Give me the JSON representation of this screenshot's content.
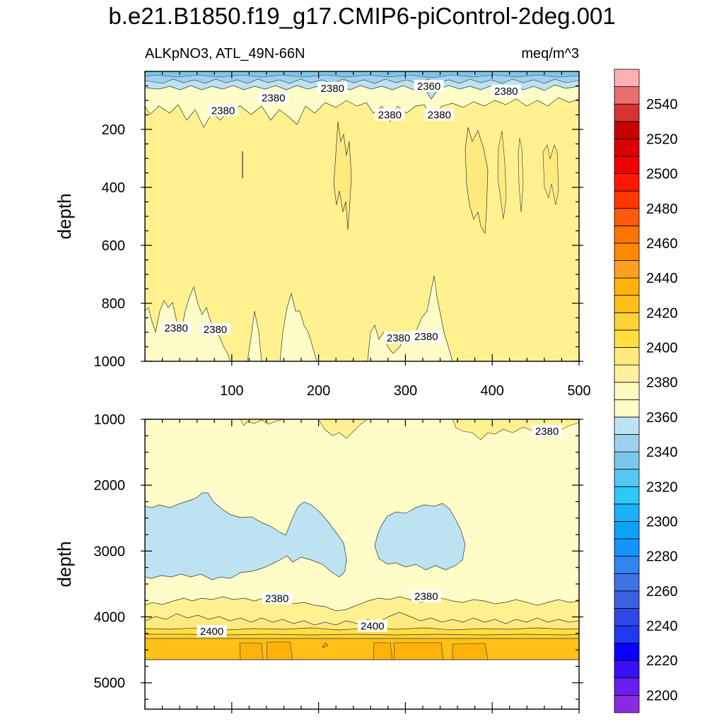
{
  "title": "b.e21.B1850.f19_g17.CMIP6-piControl-2deg.001",
  "chart_data": {
    "type": "contour",
    "variable": "ALKpNO3",
    "region": "ATL_49N-66N",
    "units": "meq/m^3",
    "left_string": "ALKpNO3, ATL_49N-66N",
    "right_string": "meq/m^3",
    "x_range": [
      0,
      500
    ],
    "panels": [
      {
        "name": "upper",
        "ylabel": "depth",
        "y_range": [
          0,
          1000
        ],
        "y_reversed": true,
        "y_ticks": [
          200,
          400,
          600,
          800,
          1000
        ],
        "x_ticks": [
          100,
          200,
          300,
          400,
          500
        ],
        "contour_labels": [
          {
            "text": "2380",
            "x": 148,
            "y": 92
          },
          {
            "text": "2380",
            "x": 216,
            "y": 58
          },
          {
            "text": "2360",
            "x": 327,
            "y": 51
          },
          {
            "text": "2380",
            "x": 416,
            "y": 68
          },
          {
            "text": "2380",
            "x": 90,
            "y": 135
          },
          {
            "text": "2380",
            "x": 282,
            "y": 150
          },
          {
            "text": "2380",
            "x": 339,
            "y": 150
          },
          {
            "text": "2380",
            "x": 36,
            "y": 885
          },
          {
            "text": "2380",
            "x": 81,
            "y": 890
          },
          {
            "text": "2380",
            "x": 292,
            "y": 920
          },
          {
            "text": "2380",
            "x": 324,
            "y": 915
          }
        ]
      },
      {
        "name": "lower",
        "ylabel": "depth",
        "y_range": [
          1000,
          5400
        ],
        "y_reversed": true,
        "y_ticks": [
          1000,
          2000,
          3000,
          4000,
          5000
        ],
        "data_bottom_depth": 4600,
        "contour_labels": [
          {
            "text": "2380",
            "x": 463,
            "y": 1180
          },
          {
            "text": "2380",
            "x": 152,
            "y": 3720
          },
          {
            "text": "2380",
            "x": 324,
            "y": 3690
          },
          {
            "text": "2400",
            "x": 77,
            "y": 4220
          },
          {
            "text": "2400",
            "x": 262,
            "y": 4140
          }
        ]
      }
    ],
    "colorbar": {
      "levels": [
        2200,
        2210,
        2220,
        2230,
        2240,
        2250,
        2260,
        2270,
        2280,
        2290,
        2300,
        2310,
        2320,
        2330,
        2340,
        2350,
        2360,
        2370,
        2380,
        2390,
        2400,
        2410,
        2420,
        2430,
        2440,
        2450,
        2460,
        2470,
        2480,
        2490,
        2500,
        2510,
        2520,
        2530,
        2540,
        2550
      ],
      "tick_labels": [
        "2200",
        "2220",
        "2240",
        "2260",
        "2280",
        "2300",
        "2320",
        "2340",
        "2360",
        "2380",
        "2400",
        "2420",
        "2440",
        "2460",
        "2480",
        "2500",
        "2520",
        "2540"
      ],
      "colors": [
        "#8a2be2",
        "#6a1ff0",
        "#3a0ff5",
        "#0a00fb",
        "#2038f0",
        "#2e48e6",
        "#3d60e0",
        "#3e73e6",
        "#2f86f2",
        "#1694fb",
        "#0aa2fa",
        "#18b2f7",
        "#2cc8f7",
        "#55c8f5",
        "#7dc6ea",
        "#9ed1ee",
        "#bde3f2",
        "#fefdc8",
        "#fffac2",
        "#fff0a0",
        "#ffea80",
        "#ffe040",
        "#ffd238",
        "#ffc018",
        "#ffb20a",
        "#ffa020",
        "#ff8a00",
        "#ff7400",
        "#ff5a0e",
        "#ff3800",
        "#ff1800",
        "#f00000",
        "#d80000",
        "#c80000",
        "#d83232",
        "#ec6e6e",
        "#ffb0b4"
      ]
    }
  }
}
